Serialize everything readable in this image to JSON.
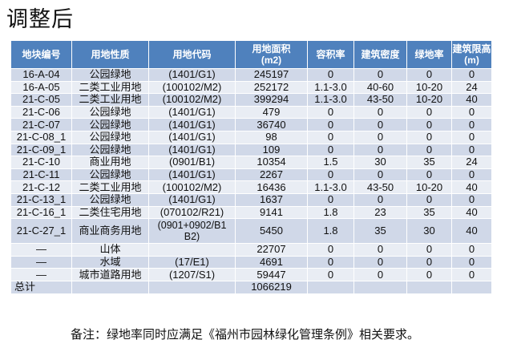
{
  "title": "调整后",
  "table": {
    "headers": [
      "地块编号",
      "用地性质",
      "用地代码",
      "用地面积\n(m2)",
      "容积率",
      "建筑密度",
      "绿地率",
      "建筑限高\n(m)"
    ],
    "rows": [
      [
        "16-A-04",
        "公园绿地",
        "(1401/G1)",
        "245197",
        "0",
        "0",
        "0",
        "0"
      ],
      [
        "16-A-05",
        "二类工业用地",
        "(100102/M2)",
        "252172",
        "1.1-3.0",
        "40-60",
        "10-20",
        "24"
      ],
      [
        "21-C-05",
        "二类工业用地",
        "(100102/M2)",
        "399294",
        "1.1-3.0",
        "43-50",
        "10-20",
        "40"
      ],
      [
        "21-C-06",
        "公园绿地",
        "(1401/G1)",
        "479",
        "0",
        "0",
        "0",
        "0"
      ],
      [
        "21-C-07",
        "公园绿地",
        "(1401/G1)",
        "36740",
        "0",
        "0",
        "0",
        "0"
      ],
      [
        "21-C-08_1",
        "公园绿地",
        "(1401/G1)",
        "98",
        "0",
        "0",
        "0",
        "0"
      ],
      [
        "21-C-09_1",
        "公园绿地",
        "(1401/G1)",
        "109",
        "0",
        "0",
        "0",
        "0"
      ],
      [
        "21-C-10",
        "商业用地",
        "(0901/B1)",
        "10354",
        "1.5",
        "30",
        "35",
        "24"
      ],
      [
        "21-C-11",
        "公园绿地",
        "(1401/G1)",
        "2267",
        "0",
        "0",
        "0",
        "0"
      ],
      [
        "21-C-12",
        "二类工业用地",
        "(100102/M2)",
        "16436",
        "1.1-3.0",
        "43-50",
        "10-20",
        "40"
      ],
      [
        "21-C-13_1",
        "公园绿地",
        "(1401/G1)",
        "1637",
        "0",
        "0",
        "0",
        "0"
      ],
      [
        "21-C-16_1",
        "二类住宅用地",
        "(070102/R21)",
        "9141",
        "1.8",
        "23",
        "35",
        "40"
      ],
      [
        "21-C-27_1",
        "商业商务用地",
        "(0901+0902/B1 B2)",
        "5450",
        "1.8",
        "35",
        "30",
        "40"
      ],
      [
        "—",
        "山体",
        "",
        "22707",
        "0",
        "0",
        "0",
        "0"
      ],
      [
        "—",
        "水域",
        "(17/E1)",
        "4691",
        "0",
        "0",
        "0",
        "0"
      ],
      [
        "—",
        "城市道路用地",
        "(1207/S1)",
        "59447",
        "0",
        "0",
        "0",
        "0"
      ],
      [
        "总计",
        "",
        "",
        "1066219",
        "",
        "",
        "",
        ""
      ]
    ]
  },
  "note": "备注：绿地率同时应满足《福州市园林绿化管理条例》相关要求。"
}
